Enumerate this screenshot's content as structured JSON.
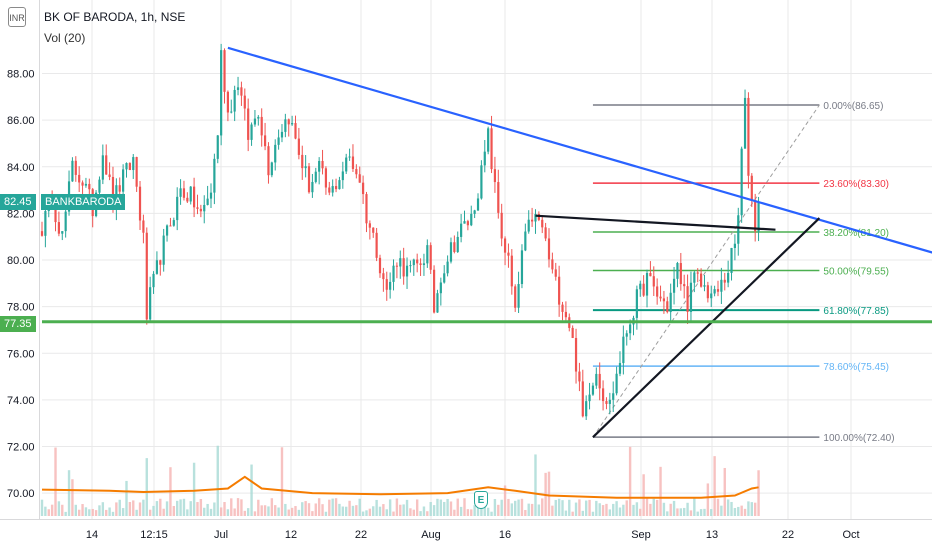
{
  "header": {
    "symbol_line": "BK OF BARODA, 1h, NSE",
    "volume_line": "Vol (20)",
    "currency": "INR"
  },
  "price_tags": {
    "last_price": "82.45",
    "last_label": "BANKBARODA",
    "support_price": "77.35"
  },
  "earnings_marker": "E",
  "chart_data": {
    "type": "candlestick",
    "title": "BK OF BARODA, 1h, NSE",
    "y_ticks": [
      "88.00",
      "86.00",
      "84.00",
      "82.00",
      "80.00",
      "78.00",
      "76.00",
      "74.00",
      "72.00",
      "70.00"
    ],
    "ylim": [
      69.4,
      90.1
    ],
    "x_ticks": [
      "14",
      "12:15",
      "Jul",
      "12",
      "22",
      "Aug",
      "16",
      "Sep",
      "13",
      "22",
      "Oct"
    ],
    "close_path": [
      [
        0,
        81.4
      ],
      [
        3,
        82.6
      ],
      [
        6,
        81.0
      ],
      [
        9,
        84.0
      ],
      [
        12,
        83.4
      ],
      [
        15,
        82.2
      ],
      [
        18,
        84.7
      ],
      [
        21,
        82.5
      ],
      [
        24,
        83.5
      ],
      [
        27,
        84.3
      ],
      [
        30,
        80.8
      ],
      [
        31,
        77.6
      ],
      [
        32,
        78.4
      ],
      [
        35,
        80.2
      ],
      [
        38,
        81.6
      ],
      [
        41,
        83.0
      ],
      [
        44,
        82.7
      ],
      [
        47,
        81.9
      ],
      [
        50,
        83.0
      ],
      [
        52,
        85.5
      ],
      [
        53,
        88.8
      ],
      [
        55,
        86.3
      ],
      [
        58,
        87.7
      ],
      [
        61,
        85.3
      ],
      [
        64,
        86.5
      ],
      [
        67,
        84.0
      ],
      [
        70,
        85.5
      ],
      [
        73,
        86.2
      ],
      [
        76,
        84.6
      ],
      [
        79,
        83.2
      ],
      [
        82,
        83.9
      ],
      [
        85,
        82.7
      ],
      [
        88,
        83.6
      ],
      [
        91,
        84.4
      ],
      [
        94,
        83.5
      ],
      [
        96,
        81.9
      ],
      [
        99,
        80.5
      ],
      [
        102,
        78.6
      ],
      [
        105,
        80.1
      ],
      [
        108,
        79.5
      ],
      [
        111,
        79.7
      ],
      [
        114,
        80.4
      ],
      [
        116,
        77.9
      ],
      [
        118,
        79.4
      ],
      [
        121,
        80.5
      ],
      [
        124,
        81.3
      ],
      [
        127,
        81.8
      ],
      [
        130,
        83.7
      ],
      [
        132,
        85.3
      ],
      [
        134,
        83.0
      ],
      [
        136,
        81.1
      ],
      [
        138,
        79.9
      ],
      [
        140,
        77.6
      ],
      [
        142,
        80.3
      ],
      [
        145,
        81.9
      ],
      [
        148,
        81.4
      ],
      [
        151,
        79.4
      ],
      [
        154,
        78.1
      ],
      [
        156,
        77.3
      ],
      [
        158,
        75.6
      ],
      [
        160,
        73.2
      ],
      [
        162,
        74.6
      ],
      [
        164,
        75.3
      ],
      [
        166,
        74.3
      ],
      [
        168,
        73.8
      ],
      [
        170,
        75.1
      ],
      [
        173,
        77.0
      ],
      [
        176,
        78.3
      ],
      [
        179,
        79.2
      ],
      [
        182,
        78.5
      ],
      [
        185,
        78.0
      ],
      [
        188,
        79.6
      ],
      [
        191,
        78.2
      ],
      [
        193,
        79.2
      ],
      [
        196,
        78.8
      ],
      [
        199,
        78.4
      ],
      [
        202,
        79.2
      ],
      [
        205,
        80.6
      ],
      [
        206,
        81.9
      ],
      [
        207,
        84.6
      ],
      [
        208,
        86.6
      ],
      [
        209,
        83.9
      ],
      [
        210,
        82.5
      ],
      [
        211,
        81.5
      ],
      [
        212,
        82.45
      ]
    ],
    "volume_ma": [
      [
        0,
        70.15
      ],
      [
        20,
        70.1
      ],
      [
        30,
        70.05
      ],
      [
        45,
        70.1
      ],
      [
        55,
        70.2
      ],
      [
        60,
        70.7
      ],
      [
        65,
        70.2
      ],
      [
        80,
        70.0
      ],
      [
        100,
        69.95
      ],
      [
        120,
        70.0
      ],
      [
        132,
        70.25
      ],
      [
        140,
        70.1
      ],
      [
        150,
        69.9
      ],
      [
        160,
        69.85
      ],
      [
        170,
        69.8
      ],
      [
        180,
        69.8
      ],
      [
        195,
        69.8
      ],
      [
        205,
        69.9
      ],
      [
        210,
        70.2
      ],
      [
        212,
        70.25
      ]
    ],
    "trendlines": [
      {
        "name": "descending",
        "color": "#2962ff",
        "from": [
          55,
          89.1
        ],
        "to": [
          290,
          79.2
        ]
      },
      {
        "name": "flat-resistance",
        "color": "#131722",
        "from": [
          146,
          81.9
        ],
        "to": [
          217,
          81.3
        ]
      },
      {
        "name": "rising-support",
        "color": "#131722",
        "from": [
          163,
          72.4
        ],
        "to": [
          230,
          81.8
        ]
      },
      {
        "name": "support-level",
        "color": "#4caf50",
        "from": [
          0,
          77.35
        ],
        "to": [
          300,
          77.35
        ]
      }
    ],
    "fibonacci": {
      "from_index": 163,
      "to_index": 230,
      "levels": [
        {
          "ratio": "0.00%",
          "price": 86.65,
          "label": "0.00%(86.65)",
          "color": "#787b86"
        },
        {
          "ratio": "23.60%",
          "price": 83.3,
          "label": "23.60%(83.30)",
          "color": "#f23645"
        },
        {
          "ratio": "38.20%",
          "price": 81.2,
          "label": "38.20%(81.20)",
          "color": "#4caf50"
        },
        {
          "ratio": "50.00%",
          "price": 79.55,
          "label": "50.00%(79.55)",
          "color": "#4caf50"
        },
        {
          "ratio": "61.80%",
          "price": 77.85,
          "label": "61.80%(77.85)",
          "color": "#089981"
        },
        {
          "ratio": "78.60%",
          "price": 75.45,
          "label": "78.60%(75.45)",
          "color": "#64b5f6"
        },
        {
          "ratio": "100.00%",
          "price": 72.4,
          "label": "100.00%(72.40)",
          "color": "#787b86"
        }
      ]
    },
    "colors": {
      "up": "#26a69a",
      "down": "#ef5350",
      "volume_ma": "#f57c00",
      "grid": "#e9e9ea"
    }
  }
}
